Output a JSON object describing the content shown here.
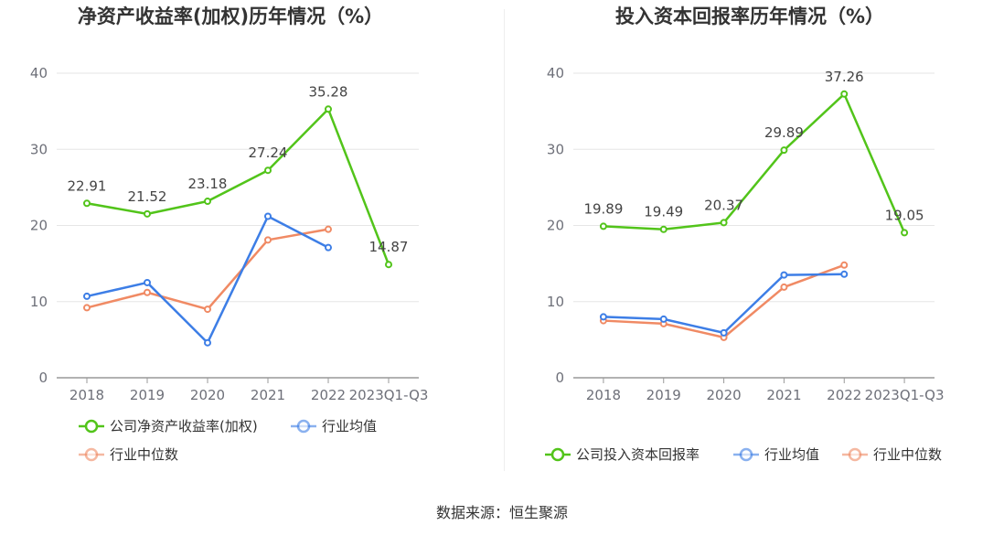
{
  "colors": {
    "company": "#52c41a",
    "avg": "#3d7ee6",
    "median": "#f08a64",
    "grid": "#e6e6e6",
    "axis": "#999999"
  },
  "source_text": "数据来源：恒生聚源",
  "chart_data": [
    {
      "type": "line",
      "title": "净资产收益率(加权)历年情况（%）",
      "categories": [
        "2018",
        "2019",
        "2020",
        "2021",
        "2022",
        "2023Q1-Q3"
      ],
      "ylim": [
        0,
        40
      ],
      "yticks": [
        0,
        10,
        20,
        30,
        40
      ],
      "grid": true,
      "legend_position": "bottom",
      "series": [
        {
          "name": "公司净资产收益率(加权)",
          "key": "company",
          "values": [
            22.91,
            21.52,
            23.18,
            27.24,
            35.28,
            14.87
          ],
          "labels": [
            "22.91",
            "21.52",
            "23.18",
            "27.24",
            "35.28",
            "14.87"
          ]
        },
        {
          "name": "行业均值",
          "key": "avg",
          "values": [
            10.7,
            12.5,
            4.6,
            21.2,
            17.1,
            null
          ]
        },
        {
          "name": "行业中位数",
          "key": "median",
          "values": [
            9.2,
            11.2,
            9.0,
            18.1,
            19.5,
            null
          ]
        }
      ]
    },
    {
      "type": "line",
      "title": "投入资本回报率历年情况（%）",
      "categories": [
        "2018",
        "2019",
        "2020",
        "2021",
        "2022",
        "2023Q1-Q3"
      ],
      "ylim": [
        0,
        40
      ],
      "yticks": [
        0,
        10,
        20,
        30,
        40
      ],
      "grid": true,
      "legend_position": "bottom",
      "series": [
        {
          "name": "公司投入资本回报率",
          "key": "company",
          "values": [
            19.89,
            19.49,
            20.37,
            29.89,
            37.26,
            19.05
          ],
          "labels": [
            "19.89",
            "19.49",
            "20.37",
            "29.89",
            "37.26",
            "19.05"
          ]
        },
        {
          "name": "行业均值",
          "key": "avg",
          "values": [
            8.0,
            7.7,
            5.9,
            13.5,
            13.6,
            null
          ]
        },
        {
          "name": "行业中位数",
          "key": "median",
          "values": [
            7.5,
            7.1,
            5.3,
            11.9,
            14.8,
            null
          ]
        }
      ]
    }
  ]
}
